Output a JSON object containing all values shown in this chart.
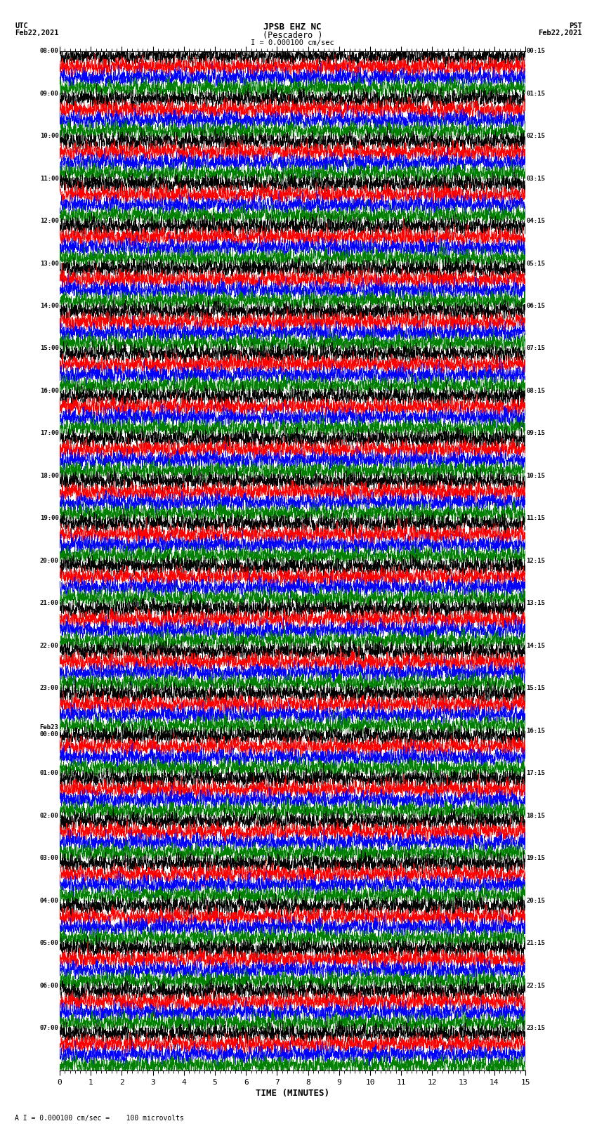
{
  "title_line1": "JPSB EHZ NC",
  "title_line2": "(Pescadero )",
  "scale_label": "I = 0.000100 cm/sec",
  "bottom_label": "A I = 0.000100 cm/sec =    100 microvolts",
  "xlabel": "TIME (MINUTES)",
  "utc_label": "UTC\nFeb22,2021",
  "pst_label": "PST\nFeb22,2021",
  "left_times": [
    "08:00",
    "09:00",
    "10:00",
    "11:00",
    "12:00",
    "13:00",
    "14:00",
    "15:00",
    "16:00",
    "17:00",
    "18:00",
    "19:00",
    "20:00",
    "21:00",
    "22:00",
    "23:00",
    "Feb23\n00:00",
    "01:00",
    "02:00",
    "03:00",
    "04:00",
    "05:00",
    "06:00",
    "07:00"
  ],
  "right_times": [
    "00:15",
    "01:15",
    "02:15",
    "03:15",
    "04:15",
    "05:15",
    "06:15",
    "07:15",
    "08:15",
    "09:15",
    "10:15",
    "11:15",
    "12:15",
    "13:15",
    "14:15",
    "15:15",
    "16:15",
    "17:15",
    "18:15",
    "19:15",
    "20:15",
    "21:15",
    "22:15",
    "23:15"
  ],
  "colors": [
    "black",
    "red",
    "blue",
    "green"
  ],
  "n_rows": 96,
  "n_hours": 24,
  "rows_per_hour": 4,
  "xmin": 0,
  "xmax": 15,
  "bg_color": "white",
  "seed": 42
}
